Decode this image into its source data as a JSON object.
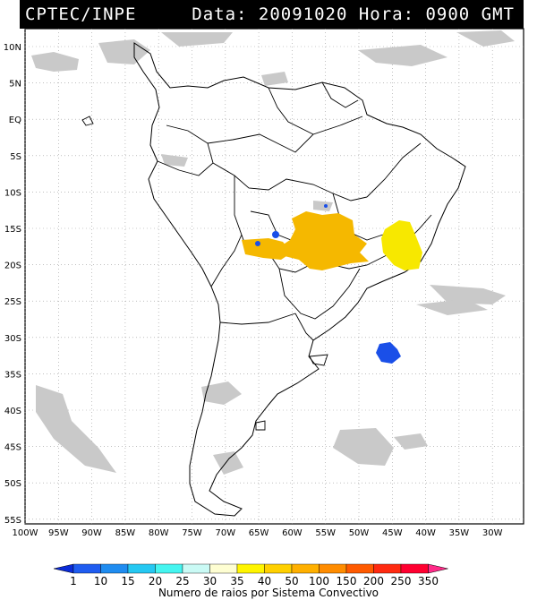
{
  "header": {
    "left": "CPTEC/INPE",
    "right": "Data: 20091020 Hora: 0900 GMT"
  },
  "lat_labels": [
    "10N",
    "5N",
    "EQ",
    "5S",
    "10S",
    "15S",
    "20S",
    "25S",
    "30S",
    "35S",
    "40S",
    "45S",
    "50S",
    "55S"
  ],
  "lon_labels": [
    "100W",
    "95W",
    "90W",
    "85W",
    "80W",
    "75W",
    "70W",
    "65W",
    "60W",
    "55W",
    "50W",
    "45W",
    "40W",
    "35W",
    "30W"
  ],
  "colorbar": {
    "labels": [
      "1",
      "10",
      "15",
      "20",
      "25",
      "30",
      "35",
      "40",
      "50",
      "100",
      "150",
      "200",
      "250",
      "350"
    ],
    "colors": [
      "#0a2bd8",
      "#1f5cf0",
      "#1f8cf0",
      "#25c8f2",
      "#45f5f0",
      "#cafaf5",
      "#fefed2",
      "#fff500",
      "#ffd000",
      "#ffb000",
      "#ff8c00",
      "#ff5a00",
      "#ff2a10",
      "#ff0030",
      "#ff2a88"
    ],
    "caption": "Numero de raios por Sistema Convectivo"
  },
  "systems": [
    {
      "name": "orange-cluster-central",
      "color": "#f5b800",
      "lat": -18,
      "lon": -57
    },
    {
      "name": "yellow-cluster-east",
      "color": "#f7e800",
      "lat": -17,
      "lon": -44
    },
    {
      "name": "blue-cluster-south",
      "color": "#1a4fe8",
      "lat": -32,
      "lon": -46
    },
    {
      "name": "blue-cluster-bolivia",
      "color": "#1a4fe8",
      "lat": -17,
      "lon": -64
    }
  ]
}
